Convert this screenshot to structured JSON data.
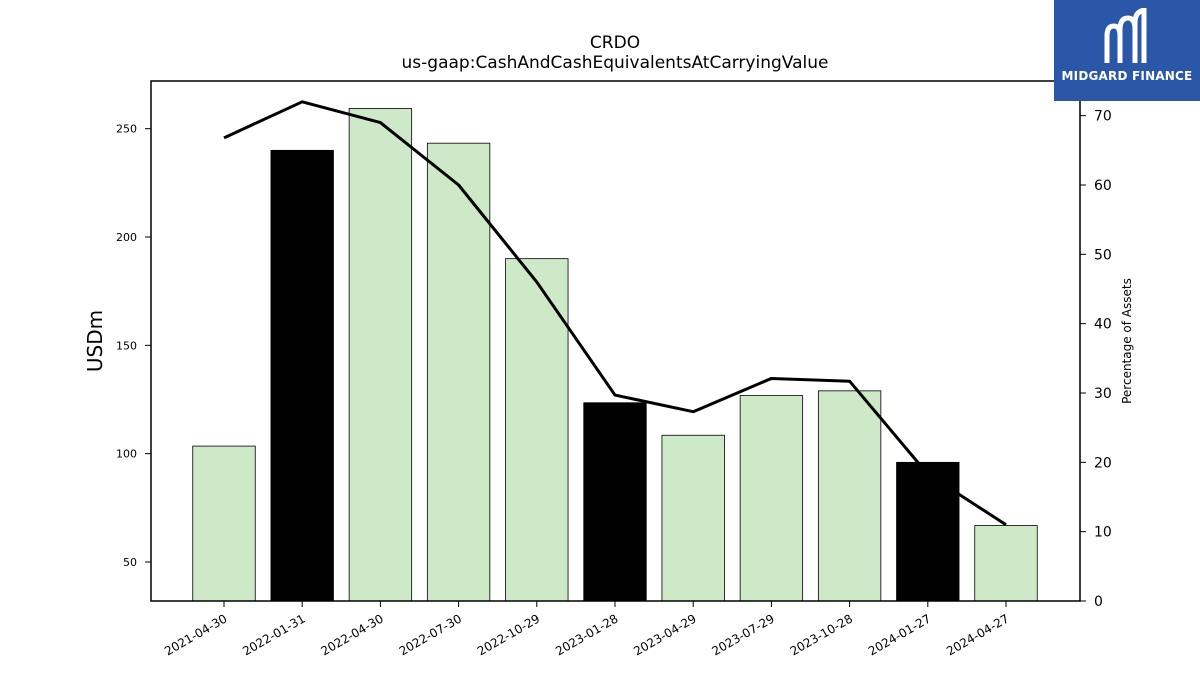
{
  "chart_data": {
    "type": "bar",
    "title": "CRDO",
    "subtitle": "us-gaap:CashAndCashEquivalentsAtCarryingValue",
    "ylabel": "USDm",
    "y2label": "Percentage of Assets",
    "categories": [
      "2021-04-30",
      "2022-01-31",
      "2022-04-30",
      "2022-07-30",
      "2022-10-29",
      "2023-01-28",
      "2023-04-29",
      "2023-07-29",
      "2023-10-28",
      "2024-01-27",
      "2024-04-27"
    ],
    "values": [
      103.5,
      240.0,
      259.3,
      243.3,
      190.0,
      123.5,
      108.5,
      126.8,
      129.0,
      96.0,
      66.8
    ],
    "bar_colors": [
      "#cde9c7",
      "#000000",
      "#cde9c7",
      "#cde9c7",
      "#cde9c7",
      "#000000",
      "#cde9c7",
      "#cde9c7",
      "#cde9c7",
      "#000000",
      "#cde9c7"
    ],
    "line_series": {
      "values": [
        66.8,
        72.0,
        69.0,
        60.0,
        46.0,
        29.7,
        27.3,
        32.1,
        31.7,
        18.3,
        11.0
      ]
    },
    "ylim": [
      32,
      272
    ],
    "y2lim": [
      0,
      75
    ],
    "yticks": [
      50,
      100,
      150,
      200,
      250
    ],
    "y2ticks": [
      0,
      10,
      20,
      30,
      40,
      50,
      60,
      70
    ],
    "grid": false,
    "colors": {
      "highlight": "#000000",
      "default": "#cde9c7",
      "line": "#000000"
    }
  },
  "logo": {
    "text": "MIDGARD FINANCE",
    "color": "#2b57a8"
  }
}
